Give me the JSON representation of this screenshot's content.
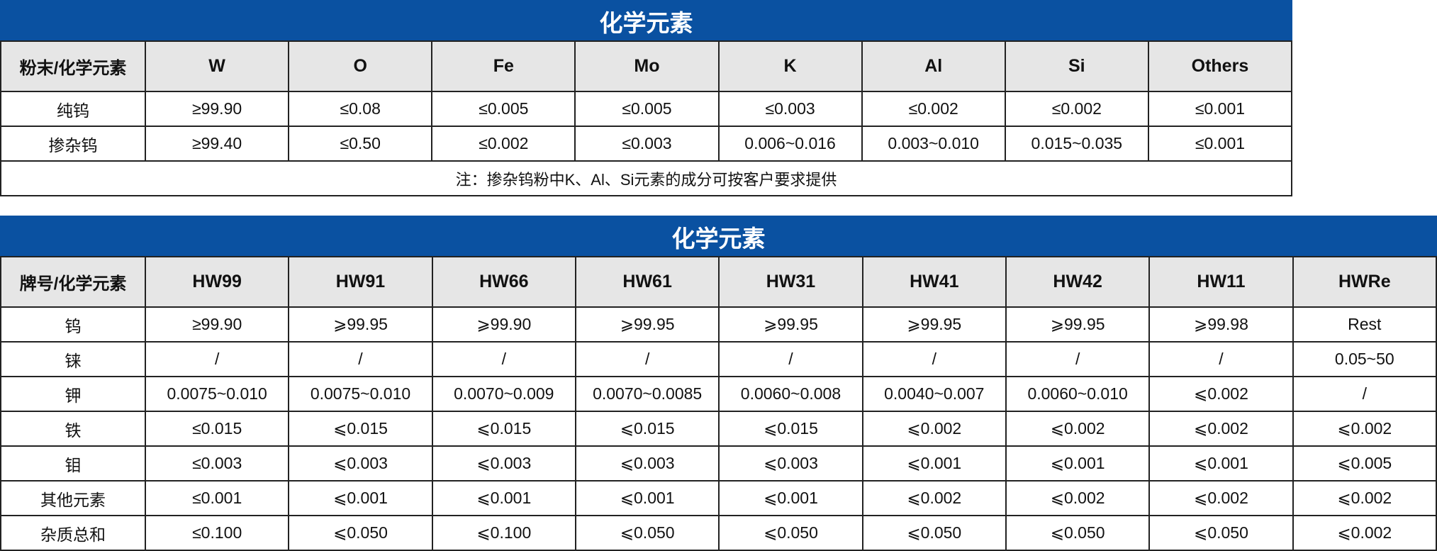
{
  "table1": {
    "title": "化学元素",
    "headers": [
      "粉末/化学元素",
      "W",
      "O",
      "Fe",
      "Mo",
      "K",
      "Al",
      "Si",
      "Others"
    ],
    "rows": [
      [
        "纯钨",
        "≥99.90",
        "≤0.08",
        "≤0.005",
        "≤0.005",
        "≤0.003",
        "≤0.002",
        "≤0.002",
        "≤0.001"
      ],
      [
        "掺杂钨",
        "≥99.40",
        "≤0.50",
        "≤0.002",
        "≤0.003",
        "0.006~0.016",
        "0.003~0.010",
        "0.015~0.035",
        "≤0.001"
      ]
    ],
    "note": "注：掺杂钨粉中K、Al、Si元素的成分可按客户要求提供"
  },
  "table2": {
    "title": "化学元素",
    "headers": [
      "牌号/化学元素",
      "HW99",
      "HW91",
      "HW66",
      "HW61",
      "HW31",
      "HW41",
      "HW42",
      "HW11",
      "HWRe"
    ],
    "rows": [
      [
        "钨",
        "≥99.90",
        "⩾99.95",
        "⩾99.90",
        "⩾99.95",
        "⩾99.95",
        "⩾99.95",
        "⩾99.95",
        "⩾99.98",
        "Rest"
      ],
      [
        "铼",
        "/",
        "/",
        "/",
        "/",
        "/",
        "/",
        "/",
        "/",
        "0.05~50"
      ],
      [
        "钾",
        "0.0075~0.010",
        "0.0075~0.010",
        "0.0070~0.009",
        "0.0070~0.0085",
        "0.0060~0.008",
        "0.0040~0.007",
        "0.0060~0.010",
        "⩽0.002",
        "/"
      ],
      [
        "铁",
        "≤0.015",
        "⩽0.015",
        "⩽0.015",
        "⩽0.015",
        "⩽0.015",
        "⩽0.002",
        "⩽0.002",
        "⩽0.002",
        "⩽0.002"
      ],
      [
        "钼",
        "≤0.003",
        "⩽0.003",
        "⩽0.003",
        "⩽0.003",
        "⩽0.003",
        "⩽0.001",
        "⩽0.001",
        "⩽0.001",
        "⩽0.005"
      ],
      [
        "其他元素",
        "≤0.001",
        "⩽0.001",
        "⩽0.001",
        "⩽0.001",
        "⩽0.001",
        "⩽0.002",
        "⩽0.002",
        "⩽0.002",
        "⩽0.002"
      ],
      [
        "杂质总和",
        "≤0.100",
        "⩽0.050",
        "⩽0.100",
        "⩽0.050",
        "⩽0.050",
        "⩽0.050",
        "⩽0.050",
        "⩽0.050",
        "⩽0.002"
      ]
    ]
  },
  "colors": {
    "title_bg": "#0a51a1",
    "header_bg": "#e6e6e6"
  }
}
